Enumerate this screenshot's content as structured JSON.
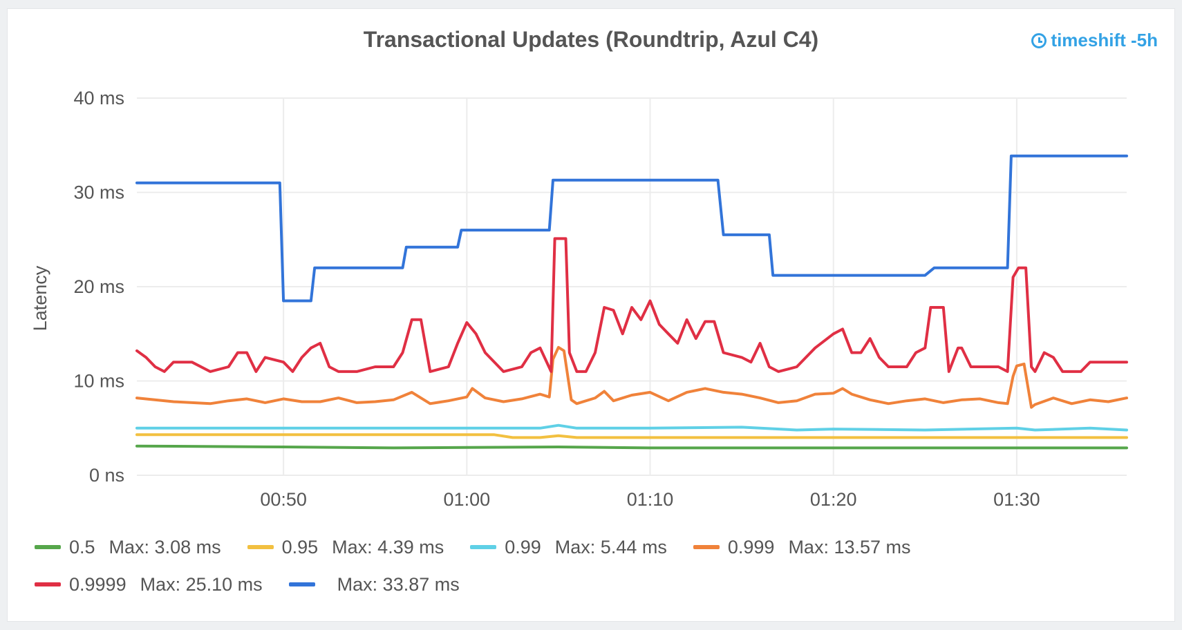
{
  "panel": {
    "title": "Transactional Updates (Roundtrip, Azul C4)",
    "timeshift": "timeshift -5h",
    "timeshift_icon": "clock-icon"
  },
  "chart_data": {
    "type": "line",
    "title": "Transactional Updates (Roundtrip, Azul C4)",
    "ylabel": "Latency",
    "xlabel": "",
    "x_range": [
      "00:42",
      "01:36"
    ],
    "ylim": [
      0,
      40
    ],
    "y_unit": "ms",
    "x_ticks": [
      "00:50",
      "01:00",
      "01:10",
      "01:20",
      "01:30"
    ],
    "y_ticks": [
      "0 ns",
      "10 ms",
      "20 ms",
      "30 ms",
      "40 ms"
    ],
    "grid": true,
    "legend_position": "bottom-left",
    "series": [
      {
        "name": "0.5",
        "color": "#56a64b",
        "max_label": "Max: 3.08 ms",
        "points": [
          [
            "00:42",
            3.1
          ],
          [
            "00:50",
            3.0
          ],
          [
            "00:56",
            2.9
          ],
          [
            "01:00",
            2.95
          ],
          [
            "01:05",
            3.0
          ],
          [
            "01:10",
            2.9
          ],
          [
            "01:20",
            2.9
          ],
          [
            "01:30",
            2.9
          ],
          [
            "01:36",
            2.9
          ]
        ]
      },
      {
        "name": "0.95",
        "color": "#f2c040",
        "max_label": "Max: 4.39 ms",
        "points": [
          [
            "00:42",
            4.3
          ],
          [
            "00:50",
            4.3
          ],
          [
            "01:00",
            4.3
          ],
          [
            "01:01.5",
            4.3
          ],
          [
            "01:02.5",
            4.0
          ],
          [
            "01:04",
            4.0
          ],
          [
            "01:05",
            4.2
          ],
          [
            "01:06",
            4.0
          ],
          [
            "01:10",
            4.0
          ],
          [
            "01:20",
            4.0
          ],
          [
            "01:30",
            4.0
          ],
          [
            "01:36",
            4.0
          ]
        ]
      },
      {
        "name": "0.99",
        "color": "#5fd0e6",
        "max_label": "Max: 5.44 ms",
        "points": [
          [
            "00:42",
            5.0
          ],
          [
            "00:50",
            5.0
          ],
          [
            "01:00",
            5.0
          ],
          [
            "01:04",
            5.0
          ],
          [
            "01:05",
            5.3
          ],
          [
            "01:06",
            5.0
          ],
          [
            "01:10",
            5.0
          ],
          [
            "01:15",
            5.1
          ],
          [
            "01:18",
            4.8
          ],
          [
            "01:20",
            4.9
          ],
          [
            "01:25",
            4.8
          ],
          [
            "01:30",
            5.0
          ],
          [
            "01:31",
            4.8
          ],
          [
            "01:34",
            5.0
          ],
          [
            "01:36",
            4.8
          ]
        ]
      },
      {
        "name": "0.999",
        "color": "#f0823a",
        "max_label": "Max: 13.57 ms",
        "points": [
          [
            "00:42",
            8.2
          ],
          [
            "00:44",
            7.8
          ],
          [
            "00:46",
            7.6
          ],
          [
            "00:47",
            7.9
          ],
          [
            "00:48",
            8.1
          ],
          [
            "00:49",
            7.7
          ],
          [
            "00:50",
            8.1
          ],
          [
            "00:51",
            7.8
          ],
          [
            "00:52",
            7.8
          ],
          [
            "00:53",
            8.2
          ],
          [
            "00:54",
            7.7
          ],
          [
            "00:55",
            7.8
          ],
          [
            "00:56",
            8.0
          ],
          [
            "00:57",
            8.8
          ],
          [
            "00:58",
            7.6
          ],
          [
            "00:59",
            7.9
          ],
          [
            "01:00",
            8.3
          ],
          [
            "01:00.3",
            9.2
          ],
          [
            "01:01",
            8.2
          ],
          [
            "01:02",
            7.8
          ],
          [
            "01:03",
            8.1
          ],
          [
            "01:04",
            8.6
          ],
          [
            "01:04.5",
            8.3
          ],
          [
            "01:04.7",
            12.3
          ],
          [
            "01:05",
            13.57
          ],
          [
            "01:05.3",
            13.2
          ],
          [
            "01:05.7",
            8.0
          ],
          [
            "01:06",
            7.6
          ],
          [
            "01:07",
            8.2
          ],
          [
            "01:07.5",
            8.9
          ],
          [
            "01:08",
            7.9
          ],
          [
            "01:09",
            8.5
          ],
          [
            "01:10",
            8.8
          ],
          [
            "01:11",
            7.9
          ],
          [
            "01:12",
            8.8
          ],
          [
            "01:13",
            9.2
          ],
          [
            "01:14",
            8.8
          ],
          [
            "01:15",
            8.6
          ],
          [
            "01:16",
            8.2
          ],
          [
            "01:17",
            7.7
          ],
          [
            "01:18",
            7.9
          ],
          [
            "01:19",
            8.6
          ],
          [
            "01:20",
            8.7
          ],
          [
            "01:20.5",
            9.2
          ],
          [
            "01:21",
            8.6
          ],
          [
            "01:22",
            8.0
          ],
          [
            "01:23",
            7.6
          ],
          [
            "01:24",
            7.9
          ],
          [
            "01:25",
            8.1
          ],
          [
            "01:26",
            7.7
          ],
          [
            "01:27",
            8.0
          ],
          [
            "01:28",
            8.1
          ],
          [
            "01:29",
            7.7
          ],
          [
            "01:29.5",
            7.6
          ],
          [
            "01:29.8",
            10.5
          ],
          [
            "01:30",
            11.6
          ],
          [
            "01:30.4",
            11.8
          ],
          [
            "01:30.8",
            7.2
          ],
          [
            "01:31",
            7.5
          ],
          [
            "01:32",
            8.2
          ],
          [
            "01:33",
            7.6
          ],
          [
            "01:34",
            8.0
          ],
          [
            "01:35",
            7.8
          ],
          [
            "01:36",
            8.2
          ]
        ]
      },
      {
        "name": "0.9999",
        "color": "#e02f44",
        "max_label": "Max: 25.10 ms",
        "points": [
          [
            "00:42",
            13.2
          ],
          [
            "00:42.5",
            12.5
          ],
          [
            "00:43",
            11.5
          ],
          [
            "00:43.5",
            11.0
          ],
          [
            "00:44",
            12.0
          ],
          [
            "00:45",
            12.0
          ],
          [
            "00:46",
            11.0
          ],
          [
            "00:47",
            11.5
          ],
          [
            "00:47.5",
            13.0
          ],
          [
            "00:48",
            13.0
          ],
          [
            "00:48.5",
            11.0
          ],
          [
            "00:49",
            12.5
          ],
          [
            "00:50",
            12.0
          ],
          [
            "00:50.5",
            11.0
          ],
          [
            "00:51",
            12.5
          ],
          [
            "00:51.5",
            13.5
          ],
          [
            "00:52",
            14.0
          ],
          [
            "00:52.5",
            11.5
          ],
          [
            "00:53",
            11.0
          ],
          [
            "00:54",
            11.0
          ],
          [
            "00:55",
            11.5
          ],
          [
            "00:56",
            11.5
          ],
          [
            "00:56.5",
            13.0
          ],
          [
            "00:57",
            16.5
          ],
          [
            "00:57.5",
            16.5
          ],
          [
            "00:58",
            11.0
          ],
          [
            "00:59",
            11.5
          ],
          [
            "00:59.5",
            14.0
          ],
          [
            "01:00",
            16.2
          ],
          [
            "01:00.5",
            15.0
          ],
          [
            "01:01",
            13.0
          ],
          [
            "01:02",
            11.0
          ],
          [
            "01:03",
            11.5
          ],
          [
            "01:03.5",
            13.0
          ],
          [
            "01:04",
            13.5
          ],
          [
            "01:04.6",
            11.0
          ],
          [
            "01:04.8",
            25.1
          ],
          [
            "01:05.4",
            25.1
          ],
          [
            "01:05.6",
            13.0
          ],
          [
            "01:06",
            11.0
          ],
          [
            "01:06.5",
            11.0
          ],
          [
            "01:07",
            13.0
          ],
          [
            "01:07.5",
            17.8
          ],
          [
            "01:08",
            17.5
          ],
          [
            "01:08.5",
            15.0
          ],
          [
            "01:09",
            17.8
          ],
          [
            "01:09.5",
            16.5
          ],
          [
            "01:10",
            18.5
          ],
          [
            "01:10.5",
            16.0
          ],
          [
            "01:11",
            15.0
          ],
          [
            "01:11.5",
            14.0
          ],
          [
            "01:12",
            16.5
          ],
          [
            "01:12.5",
            14.5
          ],
          [
            "01:13",
            16.3
          ],
          [
            "01:13.5",
            16.3
          ],
          [
            "01:14",
            13.0
          ],
          [
            "01:15",
            12.5
          ],
          [
            "01:15.5",
            12.0
          ],
          [
            "01:16",
            14.0
          ],
          [
            "01:16.5",
            11.5
          ],
          [
            "01:17",
            11.0
          ],
          [
            "01:18",
            11.5
          ],
          [
            "01:18.5",
            12.5
          ],
          [
            "01:19",
            13.5
          ],
          [
            "01:20",
            15.0
          ],
          [
            "01:20.5",
            15.5
          ],
          [
            "01:21",
            13.0
          ],
          [
            "01:21.5",
            13.0
          ],
          [
            "01:22",
            14.5
          ],
          [
            "01:22.5",
            12.5
          ],
          [
            "01:23",
            11.5
          ],
          [
            "01:24",
            11.5
          ],
          [
            "01:24.5",
            13.0
          ],
          [
            "01:25",
            13.5
          ],
          [
            "01:25.3",
            17.8
          ],
          [
            "01:26",
            17.8
          ],
          [
            "01:26.3",
            11.0
          ],
          [
            "01:26.8",
            13.5
          ],
          [
            "01:27",
            13.5
          ],
          [
            "01:27.5",
            11.5
          ],
          [
            "01:28",
            11.5
          ],
          [
            "01:29",
            11.5
          ],
          [
            "01:29.5",
            11.0
          ],
          [
            "01:29.8",
            21.0
          ],
          [
            "01:30.1",
            22.0
          ],
          [
            "01:30.5",
            22.0
          ],
          [
            "01:30.8",
            11.5
          ],
          [
            "01:31",
            11.0
          ],
          [
            "01:31.5",
            13.0
          ],
          [
            "01:32",
            12.5
          ],
          [
            "01:32.5",
            11.0
          ],
          [
            "01:33.5",
            11.0
          ],
          [
            "01:34",
            12.0
          ],
          [
            "01:36",
            12.0
          ]
        ]
      },
      {
        "name": "",
        "color": "#3274d9",
        "max_label": "Max: 33.87 ms",
        "points": [
          [
            "00:42",
            31.0
          ],
          [
            "00:49.8",
            31.0
          ],
          [
            "00:50",
            18.5
          ],
          [
            "00:51.5",
            18.5
          ],
          [
            "00:51.7",
            22.0
          ],
          [
            "00:56.5",
            22.0
          ],
          [
            "00:56.7",
            24.2
          ],
          [
            "00:59.5",
            24.2
          ],
          [
            "00:59.7",
            26.0
          ],
          [
            "01:04.5",
            26.0
          ],
          [
            "01:04.7",
            31.3
          ],
          [
            "01:13.7",
            31.3
          ],
          [
            "01:14",
            25.5
          ],
          [
            "01:16.5",
            25.5
          ],
          [
            "01:16.7",
            21.2
          ],
          [
            "01:25",
            21.2
          ],
          [
            "01:25.5",
            22.0
          ],
          [
            "01:29.5",
            22.0
          ],
          [
            "01:29.7",
            33.87
          ],
          [
            "01:36",
            33.87
          ]
        ]
      }
    ]
  }
}
